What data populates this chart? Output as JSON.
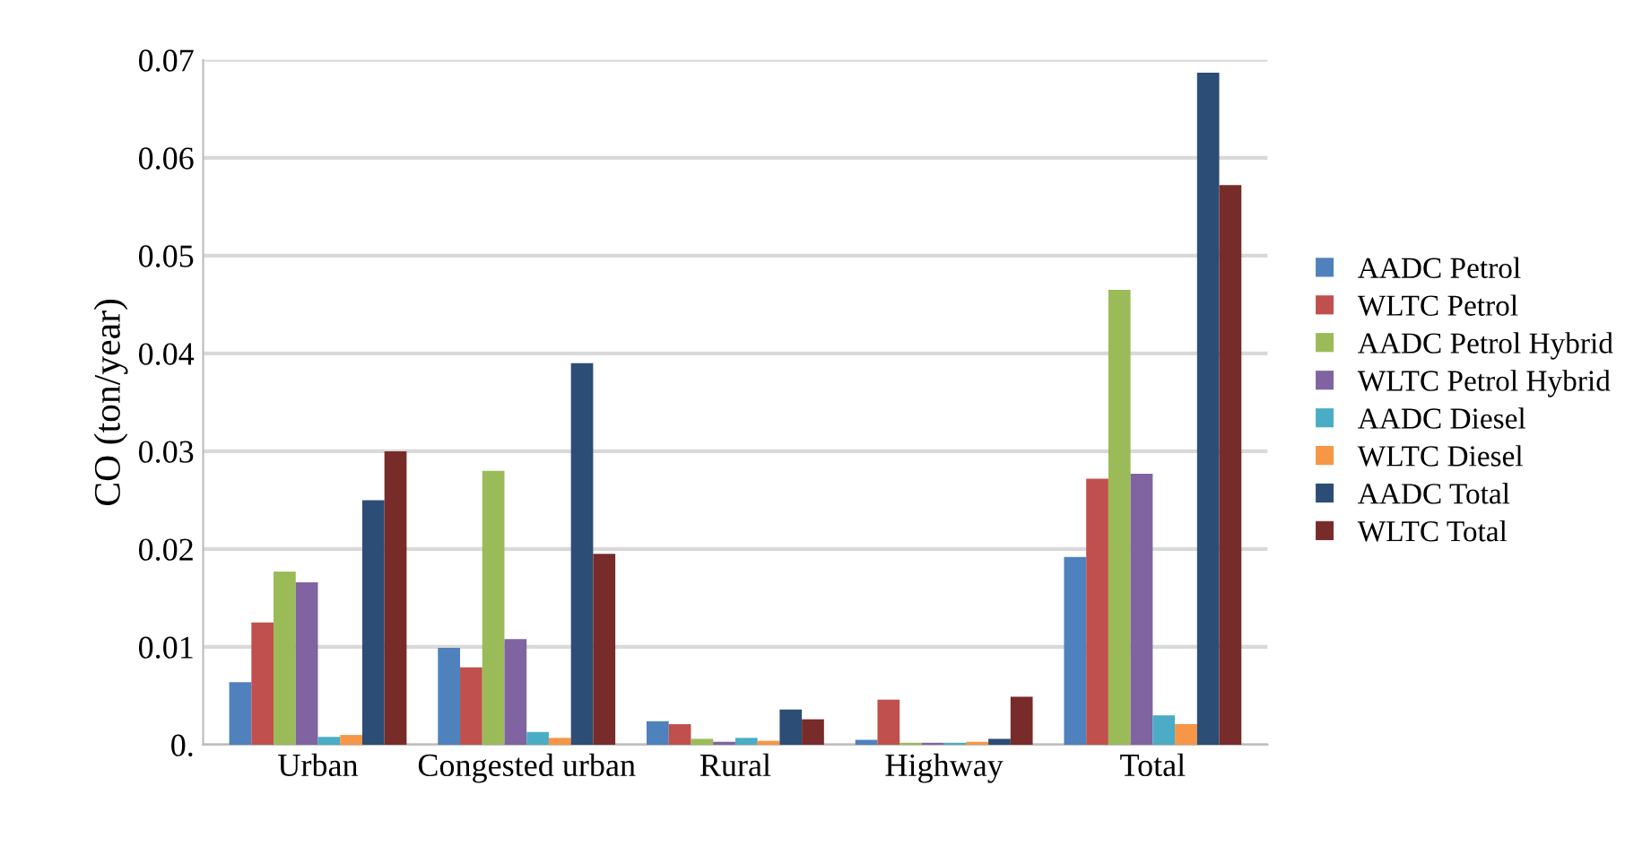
{
  "chart_data": {
    "type": "bar",
    "ylabel": "CO (ton/year)",
    "categories": [
      "Urban",
      "Congested urban",
      "Rural",
      "Highway",
      "Total"
    ],
    "series": [
      {
        "name": "AADC Petrol",
        "color": "#4f81bd",
        "values": [
          0.0064,
          0.0099,
          0.0024,
          0.0005,
          0.0192
        ]
      },
      {
        "name": "WLTC Petrol",
        "color": "#c0504d",
        "values": [
          0.0125,
          0.0079,
          0.0021,
          0.0046,
          0.0272
        ]
      },
      {
        "name": "AADC Petrol Hybrid",
        "color": "#9bbb59",
        "values": [
          0.0177,
          0.028,
          0.0006,
          0.0002,
          0.0465
        ]
      },
      {
        "name": "WLTC Petrol Hybrid",
        "color": "#8064a2",
        "values": [
          0.0166,
          0.0108,
          0.0003,
          0.0002,
          0.0277
        ]
      },
      {
        "name": "AADC Diesel",
        "color": "#4bacc6",
        "values": [
          0.0008,
          0.0013,
          0.0007,
          0.0002,
          0.003
        ]
      },
      {
        "name": "WLTC Diesel",
        "color": "#f79646",
        "values": [
          0.001,
          0.0007,
          0.0004,
          0.0003,
          0.0021
        ]
      },
      {
        "name": "AADC Total",
        "color": "#2c4d75",
        "values": [
          0.025,
          0.039,
          0.0036,
          0.0006,
          0.0687
        ]
      },
      {
        "name": "WLTC Total",
        "color": "#772c2a",
        "values": [
          0.03,
          0.0195,
          0.0026,
          0.0049,
          0.0572
        ]
      }
    ],
    "ylim": [
      0,
      0.07
    ],
    "yticks": [
      {
        "value": 0,
        "label": "0."
      },
      0.01,
      0.02,
      0.03,
      0.04,
      0.05,
      0.06,
      0.07
    ],
    "grid": "y",
    "legend": "right"
  }
}
